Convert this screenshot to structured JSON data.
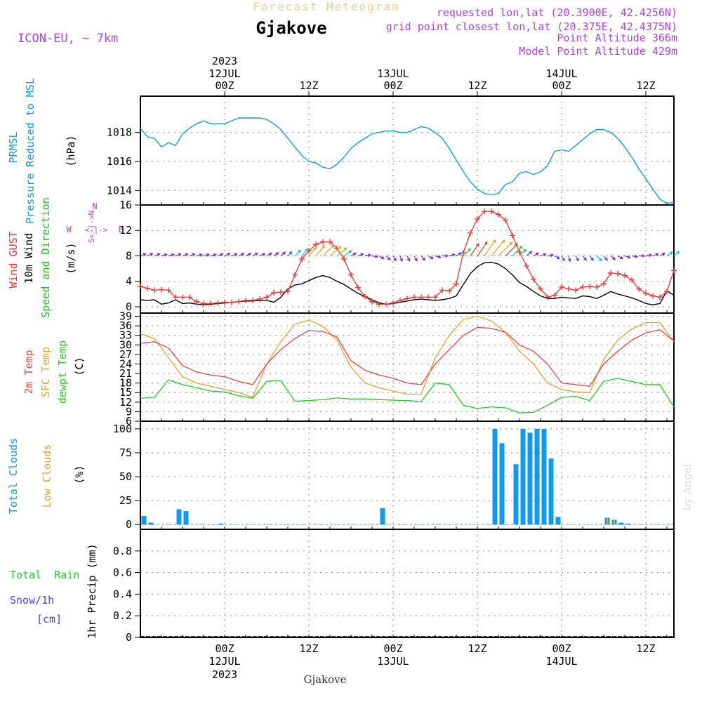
{
  "header": {
    "super_title": "Forecast Meteogram",
    "location": "Gjakove",
    "model": "ICON-EU, ~ 7km",
    "info": [
      "requested lon,lat (20.3900E, 42.4256N)",
      "grid point closest lon,lat (20.375E, 42.4375N)",
      "Point Altitude 366m",
      "Model Point Altitude 429m"
    ],
    "footer_location": "Gjakove",
    "watermark": "by Angel"
  },
  "colors": {
    "pressure": "#1199ee",
    "gust": "#ee3333",
    "wind": "#000000",
    "wind_label": "#22bb22",
    "t2m": "#ee4444",
    "sfc": "#e8a030",
    "dewpt": "#22cc22",
    "clouds": "#1199ee",
    "low_clouds": "#e8a030",
    "rain": "#22cc22",
    "snow": "#4444ee",
    "compass": "#aa44dd",
    "header_right": "#aa44dd",
    "super_title": "#f0d090"
  },
  "time_axis": {
    "top_labels": [
      {
        "t": 12,
        "lines": [
          "2023",
          "12JUL",
          "00Z"
        ]
      },
      {
        "t": 24,
        "lines": [
          "",
          "",
          "12Z"
        ]
      },
      {
        "t": 36,
        "lines": [
          "",
          "13JUL",
          "00Z"
        ]
      },
      {
        "t": 48,
        "lines": [
          "",
          "",
          "12Z"
        ]
      },
      {
        "t": 60,
        "lines": [
          "",
          "14JUL",
          "00Z"
        ]
      },
      {
        "t": 72,
        "lines": [
          "",
          "",
          "12Z"
        ]
      }
    ],
    "bottom_labels": [
      {
        "t": 12,
        "lines": [
          "00Z",
          "12JUL",
          "2023"
        ]
      },
      {
        "t": 24,
        "lines": [
          "12Z",
          "",
          ""
        ]
      },
      {
        "t": 36,
        "lines": [
          "00Z",
          "13JUL",
          ""
        ]
      },
      {
        "t": 48,
        "lines": [
          "12Z",
          "",
          ""
        ]
      },
      {
        "t": 60,
        "lines": [
          "00Z",
          "14JUL",
          ""
        ]
      },
      {
        "t": 72,
        "lines": [
          "12Z",
          "",
          ""
        ]
      }
    ]
  },
  "panels": {
    "pressure": {
      "labels": [
        {
          "text": "PRMSL",
          "color": "#1199ee"
        },
        {
          "text": "Pressure Reduced to MSL",
          "color": "#1199ee"
        },
        {
          "text": "(hPa)",
          "color": "#000000"
        }
      ],
      "ticks": [
        "1014",
        "1016",
        "1018"
      ]
    },
    "wind": {
      "labels": [
        {
          "text": "Wind GUST",
          "color": "#ee3333"
        },
        {
          "text": "10m Wind",
          "color": "#000000"
        },
        {
          "text": "Speed and Direction",
          "color": "#22bb22"
        },
        {
          "text": "(m/s)",
          "color": "#000000"
        }
      ],
      "compass": {
        "n": "N",
        "s": "S",
        "w": "W",
        "e": "E",
        "arrow_we": "<-|->",
        "arrow_ns": "S<-|->N"
      },
      "ticks": [
        "0",
        "4",
        "8",
        "12",
        "16"
      ]
    },
    "temperature": {
      "labels": [
        {
          "text": "2m Temp",
          "color": "#ee4444"
        },
        {
          "text": "SFC Temp",
          "color": "#e8a030"
        },
        {
          "text": "dewpt Temp",
          "color": "#22cc22"
        },
        {
          "text": "(C)",
          "color": "#000000"
        }
      ],
      "ticks": [
        "6",
        "9",
        "12",
        "15",
        "18",
        "21",
        "24",
        "27",
        "30",
        "33",
        "36",
        "39"
      ]
    },
    "clouds": {
      "labels": [
        {
          "text": "Total Clouds",
          "color": "#1199ee"
        },
        {
          "text": "Low Clouds",
          "color": "#e8a030"
        },
        {
          "text": "(%)",
          "color": "#000000"
        }
      ],
      "ticks": [
        "0",
        "25",
        "50",
        "75",
        "100"
      ]
    },
    "precip": {
      "labels": [
        {
          "text": "Total  Rain",
          "color": "#22cc22"
        },
        {
          "text": "Snow/1h",
          "color": "#4444ee"
        },
        {
          "text": "[cm]",
          "color": "#4444ee"
        },
        {
          "text": "1hr Precip (mm)",
          "color": "#000000"
        }
      ],
      "ticks": [
        "0",
        "0.2",
        "0.4",
        "0.6",
        "0.8"
      ]
    }
  },
  "chart_data": {
    "type": "line",
    "x_unit": "forecast hour (t=12 is 12JUL 00Z)",
    "x_range": [
      0,
      76
    ],
    "pressure": {
      "ylim": [
        1013,
        1020.5
      ],
      "x": [
        0,
        1,
        2,
        3,
        4,
        5,
        6,
        7,
        8,
        9,
        10,
        11,
        12,
        13,
        14,
        15,
        16,
        17,
        18,
        19,
        20,
        21,
        22,
        23,
        24,
        25,
        26,
        27,
        28,
        29,
        30,
        31,
        32,
        33,
        34,
        35,
        36,
        37,
        38,
        39,
        40,
        41,
        42,
        43,
        44,
        45,
        46,
        47,
        48,
        49,
        50,
        51,
        52,
        53,
        54,
        55,
        56,
        57,
        58,
        59,
        60,
        61,
        62,
        63,
        64,
        65,
        66,
        67,
        68,
        69,
        70,
        71,
        72,
        73,
        74,
        75,
        76
      ],
      "values": [
        1018.3,
        1017.7,
        1017.6,
        1017,
        1017.3,
        1017.1,
        1017.9,
        1018.3,
        1018.6,
        1018.8,
        1018.6,
        1018.6,
        1018.6,
        1018.8,
        1019,
        1019,
        1019,
        1019,
        1018.9,
        1018.6,
        1018.2,
        1017.6,
        1017,
        1016.4,
        1016,
        1015.9,
        1015.6,
        1015.5,
        1015.8,
        1016.3,
        1016.9,
        1017.3,
        1017.6,
        1017.9,
        1018,
        1018.1,
        1018.1,
        1018.0,
        1018.0,
        1018.2,
        1018.4,
        1018.3,
        1018,
        1017.6,
        1016.9,
        1016.1,
        1015.3,
        1014.6,
        1014.1,
        1013.8,
        1013.7,
        1013.8,
        1014.4,
        1014.6,
        1015.2,
        1015.3,
        1015.1,
        1015.3,
        1015.7,
        1016.7,
        1016.8,
        1016.7,
        1017.1,
        1017.5,
        1017.9,
        1018.2,
        1018.2,
        1018,
        1017.6,
        1017,
        1016.3,
        1015.5,
        1014.8,
        1014.1,
        1013.4,
        1013.1,
        1013.2
      ]
    },
    "wind": {
      "ylim": [
        -1,
        16
      ],
      "gust_x": [
        0,
        1,
        2,
        3,
        4,
        5,
        6,
        7,
        8,
        9,
        10,
        11,
        12,
        13,
        14,
        15,
        16,
        17,
        18,
        19,
        20,
        21,
        22,
        23,
        24,
        25,
        26,
        27,
        28,
        29,
        30,
        31,
        32,
        33,
        34,
        35,
        36,
        37,
        38,
        39,
        40,
        41,
        42,
        43,
        44,
        45,
        46,
        47,
        48,
        49,
        50,
        51,
        52,
        53,
        54,
        55,
        56,
        57,
        58,
        59,
        60,
        61,
        62,
        63,
        64,
        65,
        66,
        67,
        68,
        69,
        70,
        71,
        72,
        73,
        74,
        75,
        76
      ],
      "gust": [
        3.2,
        2.9,
        2.6,
        2.7,
        2.6,
        1.5,
        1.5,
        1.5,
        0.8,
        0.5,
        0.5,
        0.6,
        0.7,
        0.7,
        0.8,
        1,
        1,
        1.2,
        1.5,
        2.2,
        2.3,
        2.4,
        5,
        7.5,
        8.8,
        9.8,
        10.2,
        10.2,
        9.2,
        7.5,
        5,
        3,
        1.6,
        0.8,
        0.4,
        0.4,
        0.6,
        1,
        1.3,
        1.5,
        1.5,
        1.5,
        1.5,
        2.6,
        2.5,
        3.6,
        8.5,
        11.6,
        13.8,
        15,
        15,
        14.5,
        13.6,
        11.2,
        8.6,
        6.4,
        4.3,
        2.8,
        1.5,
        1.8,
        3.1,
        2.8,
        2.6,
        3.1,
        3.2,
        3.1,
        3.6,
        5.3,
        5.2,
        4.9,
        4.2,
        2.8,
        2.1,
        1.7,
        1.5,
        2.4,
        5.7
      ],
      "speed_x": [
        0,
        1,
        2,
        3,
        4,
        5,
        6,
        7,
        8,
        9,
        10,
        11,
        12,
        13,
        14,
        15,
        16,
        17,
        18,
        19,
        20,
        21,
        22,
        23,
        24,
        25,
        26,
        27,
        28,
        29,
        30,
        31,
        32,
        33,
        34,
        35,
        36,
        37,
        38,
        39,
        40,
        41,
        42,
        43,
        44,
        45,
        46,
        47,
        48,
        49,
        50,
        51,
        52,
        53,
        54,
        55,
        56,
        57,
        58,
        59,
        60,
        61,
        62,
        63,
        64,
        65,
        66,
        67,
        68,
        69,
        70,
        71,
        72,
        73,
        74,
        75,
        76
      ],
      "speed": [
        1.1,
        1.0,
        1.1,
        0.4,
        0.6,
        1.1,
        0.5,
        0.6,
        0.4,
        0.3,
        0.4,
        0.5,
        0.6,
        0.7,
        0.8,
        0.9,
        0.9,
        1.0,
        1.0,
        0.7,
        1.5,
        2.8,
        3.4,
        3.6,
        4.1,
        4.6,
        4.9,
        4.6,
        4.0,
        3.5,
        2.8,
        2.1,
        1.6,
        1.1,
        0.6,
        0.4,
        0.5,
        0.7,
        0.9,
        1.1,
        1.2,
        1.1,
        1.0,
        1.1,
        1.3,
        1.7,
        3.5,
        5.2,
        6.3,
        6.9,
        7.0,
        6.7,
        6.0,
        5.0,
        3.8,
        3.2,
        2.4,
        1.7,
        1.3,
        1.3,
        1.5,
        1.4,
        1.3,
        1.7,
        1.6,
        1.3,
        1.8,
        2.4,
        2.0,
        1.7,
        1.4,
        1.0,
        0.5,
        0.3,
        0.5,
        2.5,
        1.8
      ],
      "arrows": {
        "y_level": 8,
        "x": [
          0,
          1,
          2,
          3,
          4,
          5,
          6,
          7,
          8,
          9,
          10,
          11,
          12,
          13,
          14,
          15,
          16,
          17,
          18,
          19,
          20,
          21,
          22,
          23,
          24,
          25,
          26,
          27,
          28,
          29,
          30,
          31,
          32,
          33,
          34,
          35,
          36,
          37,
          38,
          39,
          40,
          41,
          42,
          43,
          44,
          45,
          46,
          47,
          48,
          49,
          50,
          51,
          52,
          53,
          54,
          55,
          56,
          57,
          58,
          59,
          60,
          61,
          62,
          63,
          64,
          65,
          66,
          67,
          68,
          69,
          70,
          71,
          72,
          73,
          74,
          75,
          76
        ],
        "direction_deg": [
          250,
          245,
          250,
          255,
          255,
          250,
          250,
          250,
          255,
          255,
          255,
          250,
          245,
          250,
          245,
          245,
          240,
          245,
          240,
          235,
          230,
          225,
          225,
          220,
          220,
          220,
          225,
          230,
          230,
          235,
          240,
          250,
          260,
          280,
          300,
          315,
          330,
          340,
          335,
          330,
          320,
          300,
          285,
          270,
          255,
          240,
          225,
          215,
          215,
          215,
          220,
          225,
          225,
          225,
          225,
          230,
          240,
          250,
          260,
          300,
          330,
          345,
          330,
          320,
          320,
          315,
          320,
          310,
          300,
          290,
          280,
          270,
          260,
          250,
          240,
          235,
          230
        ],
        "colors": [
          "#8822cc",
          "#8822cc",
          "#8822cc",
          "#8822cc",
          "#8822cc",
          "#8822cc",
          "#8822cc",
          "#8822cc",
          "#8822cc",
          "#8822cc",
          "#8822cc",
          "#8822cc",
          "#8822cc",
          "#8822cc",
          "#8822cc",
          "#8822cc",
          "#8822cc",
          "#8822cc",
          "#8822cc",
          "#8822cc",
          "#8822cc",
          "#3355ee",
          "#22aaee",
          "#22ccaa",
          "#f0a020",
          "#f0a020",
          "#f0a020",
          "#d0c020",
          "#88cc22",
          "#22cc66",
          "#8822cc",
          "#8822cc",
          "#8822cc",
          "#8822cc",
          "#8822cc",
          "#8822cc",
          "#8822cc",
          "#8822cc",
          "#8822cc",
          "#8822cc",
          "#8822cc",
          "#8822cc",
          "#8822cc",
          "#8822cc",
          "#8822cc",
          "#3355ee",
          "#22cc66",
          "#ee3333",
          "#ee3333",
          "#f0a020",
          "#f0a020",
          "#f0a020",
          "#ee3333",
          "#22cc66",
          "#22cc66",
          "#3355ee",
          "#8822cc",
          "#8822cc",
          "#8822cc",
          "#3355ee",
          "#3355ee",
          "#3355ee",
          "#3355ee",
          "#3355ee",
          "#3355ee",
          "#22aaee",
          "#3355ee",
          "#8822cc",
          "#8822cc",
          "#8822cc",
          "#8822cc",
          "#8822cc",
          "#8822cc",
          "#8822cc",
          "#8822cc",
          "#22aaee",
          "#22ccaa"
        ],
        "lengths": [
          1,
          1,
          1,
          1,
          1,
          1,
          1,
          1,
          1,
          1,
          1,
          1,
          1,
          1,
          1,
          1,
          1,
          1,
          1,
          1,
          1,
          1,
          1.4,
          1.6,
          2,
          2.4,
          2.6,
          2.6,
          2.2,
          1.6,
          1,
          1,
          1,
          1,
          1,
          1,
          1,
          1,
          1,
          1,
          1,
          1,
          1,
          1,
          1,
          1,
          1.8,
          2.6,
          3.0,
          3.4,
          3.6,
          3.4,
          3.0,
          2.4,
          1.6,
          1.2,
          1,
          1,
          1,
          1,
          1,
          1,
          1,
          1,
          1,
          1.2,
          1,
          1,
          1,
          1,
          1,
          1,
          1,
          1,
          1,
          1.2,
          1.2
        ]
      }
    },
    "temperature": {
      "ylim": [
        6,
        40
      ],
      "x": [
        0,
        2,
        4,
        6,
        8,
        10,
        12,
        14,
        16,
        18,
        20,
        22,
        24,
        26,
        28,
        30,
        32,
        34,
        36,
        38,
        40,
        42,
        44,
        46,
        48,
        50,
        52,
        54,
        56,
        58,
        60,
        62,
        64,
        66,
        68,
        70,
        72,
        74,
        76
      ],
      "t2m": [
        30.5,
        31,
        29,
        23.5,
        21.5,
        20.5,
        20,
        18.5,
        17.5,
        24,
        28.5,
        32,
        34.5,
        34.2,
        32.5,
        25,
        22,
        20.5,
        19.5,
        18,
        17.5,
        24,
        28.5,
        33,
        35.5,
        35.2,
        34,
        30,
        28,
        24,
        18,
        17.5,
        17,
        24,
        28,
        31.5,
        33.8,
        34.8,
        31.2
      ],
      "sfc": [
        33.5,
        32,
        26,
        20,
        18,
        17,
        16,
        15,
        13.5,
        24,
        31,
        36.5,
        37.8,
        35.8,
        31.5,
        23,
        18,
        16.5,
        15.5,
        14.5,
        14.5,
        26,
        33,
        38,
        39,
        37.5,
        34,
        28,
        24,
        18,
        16,
        15.2,
        15,
        25.5,
        31.5,
        35,
        37,
        37,
        31
      ],
      "dewpt": [
        13.2,
        13.5,
        19,
        17.5,
        16.5,
        15.5,
        15.2,
        14,
        13.2,
        18.5,
        18.8,
        12.3,
        12.5,
        12.8,
        13.3,
        13,
        13,
        12.8,
        12.6,
        12.5,
        12.2,
        18,
        17.5,
        11,
        10,
        10.5,
        10.2,
        8.6,
        8.8,
        11,
        13.5,
        13.8,
        12.5,
        18.5,
        19.5,
        18.5,
        17.5,
        17.5,
        10.5
      ]
    },
    "clouds": {
      "ylim": [
        -5,
        108
      ],
      "bars": [
        {
          "x": 0.5,
          "total": 9,
          "low": 0
        },
        {
          "x": 1.5,
          "total": 2,
          "low": 0
        },
        {
          "x": 5.5,
          "total": 16,
          "low": 0
        },
        {
          "x": 6.5,
          "total": 14,
          "low": 0
        },
        {
          "x": 11.5,
          "total": 1,
          "low": 0
        },
        {
          "x": 34.5,
          "total": 17,
          "low": 0
        },
        {
          "x": 50.5,
          "total": 100,
          "low": 0
        },
        {
          "x": 51.5,
          "total": 85,
          "low": 0
        },
        {
          "x": 53.5,
          "total": 63,
          "low": 0
        },
        {
          "x": 54.5,
          "total": 100,
          "low": 0
        },
        {
          "x": 55.5,
          "total": 96,
          "low": 0
        },
        {
          "x": 56.5,
          "total": 100,
          "low": 0
        },
        {
          "x": 57.5,
          "total": 100,
          "low": 0
        },
        {
          "x": 58.5,
          "total": 69,
          "low": 0
        },
        {
          "x": 59.5,
          "total": 8,
          "low": 0
        },
        {
          "x": 66.5,
          "total": 7,
          "low": 7
        },
        {
          "x": 67.5,
          "total": 5,
          "low": 5
        },
        {
          "x": 68.5,
          "total": 2,
          "low": 0
        },
        {
          "x": 69.5,
          "total": 1,
          "low": 0
        }
      ]
    },
    "precip": {
      "ylim": [
        0,
        1
      ],
      "rain": [],
      "snow": []
    }
  }
}
